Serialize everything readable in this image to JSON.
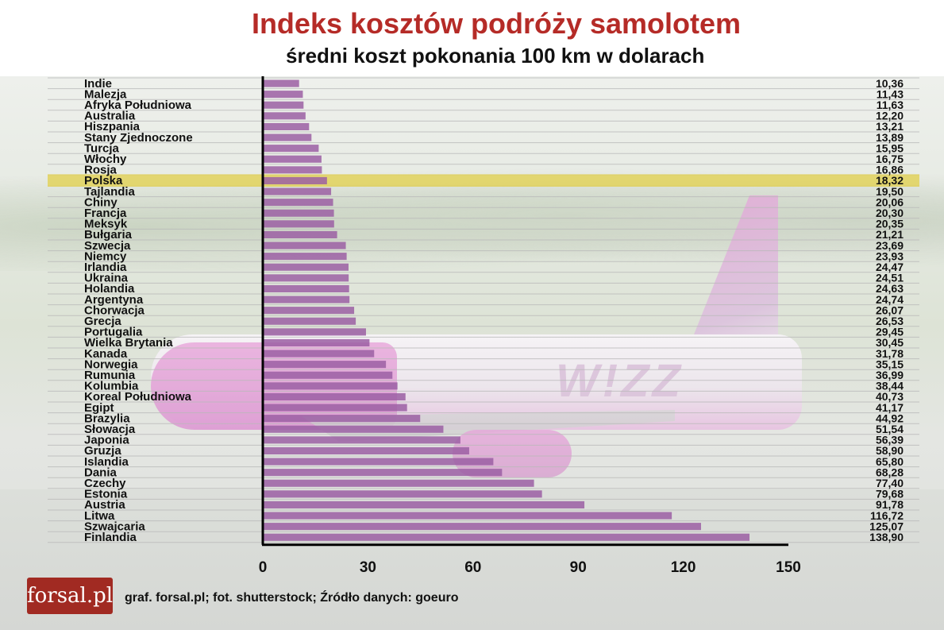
{
  "chart_data": {
    "type": "bar",
    "orientation": "horizontal",
    "title": "Indeks kosztów podróży samolotem",
    "subtitle": "średni koszt pokonania 100 km w dolarach",
    "categories": [
      "Indie",
      "Malezja",
      "Afryka Południowa",
      "Australia",
      "Hiszpania",
      "Stany Zjednoczone",
      "Turcja",
      "Włochy",
      "Rosja",
      "Polska",
      "Tajlandia",
      "Chiny",
      "Francja",
      "Meksyk",
      "Bułgaria",
      "Szwecja",
      "Niemcy",
      "Irlandia",
      "Ukraina",
      "Holandia",
      "Argentyna",
      "Chorwacja",
      "Grecja",
      "Portugalia",
      "Wielka Brytania",
      "Kanada",
      "Norwegia",
      "Rumunia",
      "Kolumbia",
      "Koreal Południowa",
      "Egipt",
      "Brazylia",
      "Słowacja",
      "Japonia",
      "Gruzja",
      "Islandia",
      "Dania",
      "Czechy",
      "Estonia",
      "Austria",
      "Litwa",
      "Szwajcaria",
      "Finlandia"
    ],
    "values": [
      10.36,
      11.43,
      11.63,
      12.2,
      13.21,
      13.89,
      15.95,
      16.75,
      16.86,
      18.32,
      19.5,
      20.06,
      20.3,
      20.35,
      21.21,
      23.69,
      23.93,
      24.47,
      24.51,
      24.63,
      24.74,
      26.07,
      26.53,
      29.45,
      30.45,
      31.78,
      35.15,
      36.99,
      38.44,
      40.73,
      41.17,
      44.92,
      51.54,
      56.39,
      58.9,
      65.8,
      68.28,
      77.4,
      79.68,
      91.78,
      116.72,
      125.07,
      138.9
    ],
    "value_labels": [
      "10,36",
      "11,43",
      "11,63",
      "12,20",
      "13,21",
      "13,89",
      "15,95",
      "16,75",
      "16,86",
      "18,32",
      "19,50",
      "20,06",
      "20,30",
      "20,35",
      "21,21",
      "23,69",
      "23,93",
      "24,47",
      "24,51",
      "24,63",
      "24,74",
      "26,07",
      "26,53",
      "29,45",
      "30,45",
      "31,78",
      "35,15",
      "36,99",
      "38,44",
      "40,73",
      "41,17",
      "44,92",
      "51,54",
      "56,39",
      "58,90",
      "65,80",
      "68,28",
      "77,40",
      "79,68",
      "91,78",
      "116,72",
      "125,07",
      "138,90"
    ],
    "highlight": "Polska",
    "xlim": [
      0,
      150
    ],
    "x_ticks": [
      0,
      30,
      60,
      90,
      120,
      150
    ],
    "grid": true,
    "bar_color": "#9b5fa3",
    "highlight_color": "#e2d25c"
  },
  "footer": {
    "brand": "forsal.pl",
    "credits": "graf. forsal.pl;   fot. shutterstock;  Źródło danych: goeuro"
  }
}
